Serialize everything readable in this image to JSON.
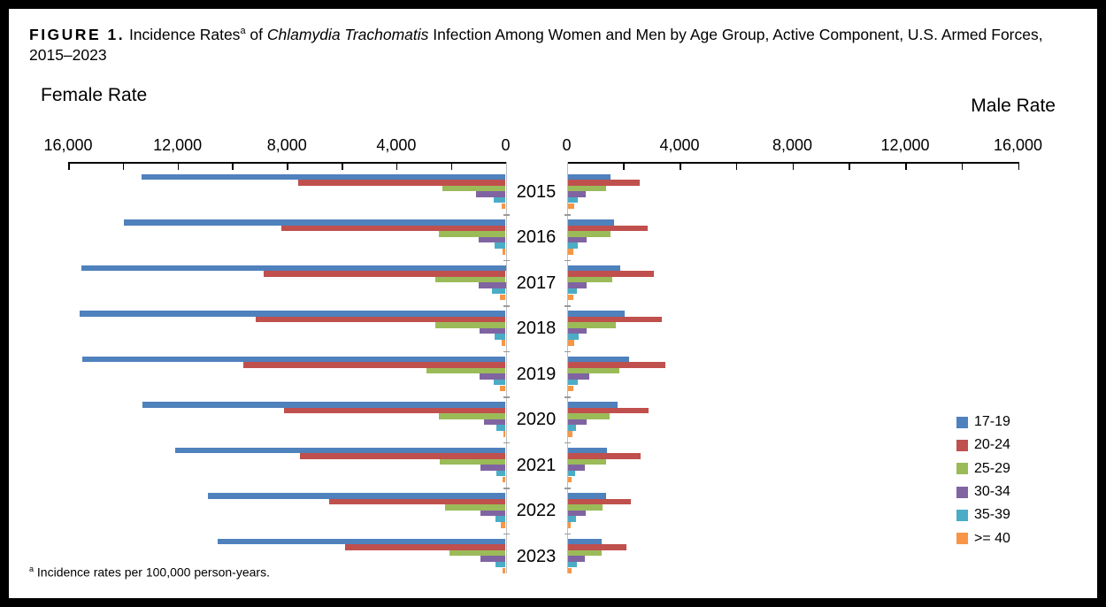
{
  "figure": {
    "title": {
      "label": "FIGURE 1.",
      "pre": " Incidence Rates",
      "sup": "a",
      "mid": " of ",
      "italic": "Chlamydia Trachomatis",
      "rest": " Infection Among Women and Men by Age Group, Active Component, U.S. Armed Forces, 2015–2023"
    },
    "footnote": {
      "sup": "a",
      "text": " Incidence rates per 100,000 person-years."
    }
  },
  "chart_data": {
    "type": "bar",
    "variant": "diverging-population-pyramid",
    "title": "FIGURE 1. Incidence Rates of Chlamydia Trachomatis Infection Among Women and Men by Age Group, Active Component, U.S. Armed Forces, 2015-2023",
    "footnote": "Incidence rates per 100,000 person-years.",
    "units": "incidence rate per 100,000 person-years",
    "grid": false,
    "left_axis": {
      "title": "Female Rate",
      "min": 0,
      "max": 16000,
      "tick_interval": 2000,
      "label_interval": 4000,
      "tick_labels": [
        "16,000",
        "12,000",
        "8,000",
        "4,000",
        "0"
      ],
      "direction": "right-to-left"
    },
    "right_axis": {
      "title": "Male Rate",
      "min": 0,
      "max": 16000,
      "tick_interval": 2000,
      "label_interval": 4000,
      "tick_labels": [
        "0",
        "4,000",
        "8,000",
        "12,000",
        "16,000"
      ],
      "direction": "left-to-right"
    },
    "years": [
      "2015",
      "2016",
      "2017",
      "2018",
      "2019",
      "2020",
      "2021",
      "2022",
      "2023"
    ],
    "legend": {
      "position": "right",
      "entries": [
        "17-19",
        "20-24",
        "25-29",
        "30-34",
        "35-39",
        ">= 40"
      ]
    },
    "series": [
      {
        "name": "17-19",
        "color": "#4F81BD",
        "female": [
          13310,
          13960,
          15500,
          15580,
          15470,
          13290,
          12070,
          10900,
          10520
        ],
        "male": [
          1520,
          1640,
          1880,
          2010,
          2180,
          1770,
          1410,
          1380,
          1210
        ]
      },
      {
        "name": "20-24",
        "color": "#C0504D",
        "female": [
          7590,
          8200,
          8860,
          9140,
          9580,
          8120,
          7520,
          6440,
          5880
        ],
        "male": [
          2560,
          2840,
          3050,
          3340,
          3480,
          2860,
          2580,
          2250,
          2100
        ]
      },
      {
        "name": "25-29",
        "color": "#9BBB59",
        "female": [
          2310,
          2450,
          2580,
          2580,
          2900,
          2430,
          2400,
          2230,
          2040
        ],
        "male": [
          1380,
          1510,
          1580,
          1720,
          1830,
          1480,
          1380,
          1230,
          1210
        ]
      },
      {
        "name": "30-34",
        "color": "#8064A2",
        "female": [
          1080,
          990,
          1000,
          940,
          940,
          790,
          920,
          920,
          920
        ],
        "male": [
          640,
          670,
          690,
          680,
          780,
          660,
          610,
          630,
          610
        ]
      },
      {
        "name": "35-39",
        "color": "#4BACC6",
        "female": [
          430,
          420,
          490,
          410,
          430,
          340,
          330,
          370,
          360
        ],
        "male": [
          360,
          360,
          330,
          380,
          370,
          310,
          260,
          310,
          320
        ]
      },
      {
        "name": ">= 40",
        "color": "#F79646",
        "female": [
          150,
          100,
          210,
          140,
          220,
          80,
          110,
          180,
          100
        ],
        "male": [
          230,
          200,
          200,
          230,
          190,
          170,
          150,
          120,
          150
        ]
      }
    ]
  }
}
